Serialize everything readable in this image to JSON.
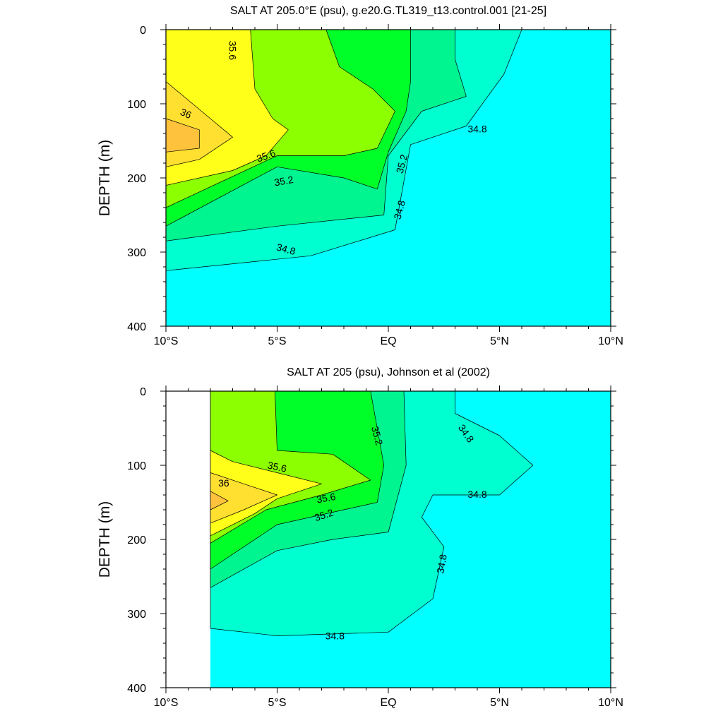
{
  "chart_data": [
    {
      "type": "contour",
      "title": "SALT AT 205.0°E (psu), g.e20.G.TL319_t13.control.001 [21-25]",
      "ylabel": "DEPTH (m)",
      "xlim": [
        -10,
        10
      ],
      "ylim": [
        400,
        0
      ],
      "x_ticks": [
        {
          "value": -10,
          "label": "10°S"
        },
        {
          "value": -5,
          "label": "5°S"
        },
        {
          "value": 0,
          "label": "EQ"
        },
        {
          "value": 5,
          "label": "5°N"
        },
        {
          "value": 10,
          "label": "10°N"
        }
      ],
      "y_ticks": [
        {
          "value": 0,
          "label": "0"
        },
        {
          "value": 100,
          "label": "100"
        },
        {
          "value": 200,
          "label": "200"
        },
        {
          "value": 300,
          "label": "300"
        },
        {
          "value": 400,
          "label": "400"
        }
      ],
      "data_x_range": [
        -10,
        10
      ],
      "levels": [
        {
          "value": 34.6,
          "color": "#00ffff"
        },
        {
          "value": 34.8,
          "color": "#00ffd0"
        },
        {
          "value": 35.0,
          "color": "#00f490"
        },
        {
          "value": 35.2,
          "color": "#00ff28"
        },
        {
          "value": 35.4,
          "color": "#8cff00"
        },
        {
          "value": 35.6,
          "color": "#ffff1a"
        },
        {
          "value": 35.8,
          "color": "#ffe030"
        },
        {
          "value": 36.0,
          "color": "#ffc23c"
        }
      ],
      "regions": [
        {
          "level": 34.8,
          "points": [
            [
              -10,
              0
            ],
            [
              6,
              0
            ],
            [
              5.2,
              60
            ],
            [
              3.5,
              130
            ],
            [
              1.0,
              155
            ],
            [
              0.3,
              270
            ],
            [
              -3.5,
              305
            ],
            [
              -10,
              325
            ]
          ]
        },
        {
          "level": 35.0,
          "points": [
            [
              -10,
              0
            ],
            [
              3,
              0
            ],
            [
              3,
              40
            ],
            [
              3.5,
              90
            ],
            [
              1.5,
              110
            ],
            [
              0,
              170
            ],
            [
              -0.2,
              250
            ],
            [
              -5,
              265
            ],
            [
              -10,
              285
            ]
          ]
        },
        {
          "level": 35.2,
          "points": [
            [
              -10,
              0
            ],
            [
              1,
              0
            ],
            [
              1,
              70
            ],
            [
              0.8,
              110
            ],
            [
              0,
              165
            ],
            [
              -0.5,
              215
            ],
            [
              -2,
              200
            ],
            [
              -5,
              185
            ],
            [
              -10,
              265
            ]
          ]
        },
        {
          "level": 35.4,
          "points": [
            [
              -10,
              0
            ],
            [
              -2.8,
              0
            ],
            [
              -2.2,
              50
            ],
            [
              -0.7,
              80
            ],
            [
              0.3,
              110
            ],
            [
              -0.5,
              160
            ],
            [
              -2,
              170
            ],
            [
              -5,
              170
            ],
            [
              -10,
              240
            ]
          ]
        },
        {
          "level": 35.6,
          "points": [
            [
              -10,
              0
            ],
            [
              -6.2,
              0
            ],
            [
              -6,
              80
            ],
            [
              -5.2,
              120
            ],
            [
              -4.5,
              135
            ],
            [
              -5.5,
              170
            ],
            [
              -7,
              190
            ],
            [
              -10,
              210
            ]
          ]
        },
        {
          "level": 35.8,
          "points": [
            [
              -10,
              70
            ],
            [
              -8,
              120
            ],
            [
              -7,
              145
            ],
            [
              -8.5,
              175
            ],
            [
              -10,
              185
            ]
          ]
        },
        {
          "level": 36.0,
          "points": [
            [
              -10,
              120
            ],
            [
              -8.5,
              135
            ],
            [
              -8.5,
              160
            ],
            [
              -10,
              165
            ]
          ]
        }
      ],
      "contour_labels": [
        {
          "text": "35.6",
          "x": -7.0,
          "y": 28,
          "angle": 90
        },
        {
          "text": "36",
          "x": -9.1,
          "y": 113,
          "angle": 25
        },
        {
          "text": "35.6",
          "x": -5.5,
          "y": 170,
          "angle": -20
        },
        {
          "text": "35.2",
          "x": -4.7,
          "y": 204,
          "angle": -10
        },
        {
          "text": "35.2",
          "x": 0.6,
          "y": 181,
          "angle": -75
        },
        {
          "text": "34.8",
          "x": 4.0,
          "y": 134,
          "angle": 0
        },
        {
          "text": "34.8",
          "x": 0.5,
          "y": 243,
          "angle": -75
        },
        {
          "text": "34.8",
          "x": -4.6,
          "y": 296,
          "angle": 15
        }
      ]
    },
    {
      "type": "contour",
      "title": "SALT AT 205 (psu), Johnson et al (2002)",
      "ylabel": "DEPTH (m)",
      "xlim": [
        -10,
        10
      ],
      "ylim": [
        400,
        0
      ],
      "x_ticks": [
        {
          "value": -10,
          "label": "10°S"
        },
        {
          "value": -5,
          "label": "5°S"
        },
        {
          "value": 0,
          "label": "EQ"
        },
        {
          "value": 5,
          "label": "5°N"
        },
        {
          "value": 10,
          "label": "10°N"
        }
      ],
      "y_ticks": [
        {
          "value": 0,
          "label": "0"
        },
        {
          "value": 100,
          "label": "100"
        },
        {
          "value": 200,
          "label": "200"
        },
        {
          "value": 300,
          "label": "300"
        },
        {
          "value": 400,
          "label": "400"
        }
      ],
      "data_x_range": [
        -8,
        10
      ],
      "levels": [
        {
          "value": 34.6,
          "color": "#00ffff"
        },
        {
          "value": 34.8,
          "color": "#00ffd0"
        },
        {
          "value": 35.0,
          "color": "#00f490"
        },
        {
          "value": 35.2,
          "color": "#00ff28"
        },
        {
          "value": 35.4,
          "color": "#8cff00"
        },
        {
          "value": 35.6,
          "color": "#ffff1a"
        },
        {
          "value": 35.8,
          "color": "#ffe030"
        },
        {
          "value": 36.0,
          "color": "#ffc23c"
        }
      ],
      "regions": [
        {
          "level": 34.8,
          "points": [
            [
              -8,
              0
            ],
            [
              3,
              0
            ],
            [
              3,
              30
            ],
            [
              5,
              60
            ],
            [
              6.5,
              100
            ],
            [
              5,
              140
            ],
            [
              2,
              140
            ],
            [
              1.5,
              170
            ],
            [
              2.5,
              210
            ],
            [
              2,
              280
            ],
            [
              0,
              325
            ],
            [
              -5,
              330
            ],
            [
              -8,
              320
            ]
          ]
        },
        {
          "level": 35.0,
          "points": [
            [
              -8,
              0
            ],
            [
              0.7,
              0
            ],
            [
              0.8,
              100
            ],
            [
              0,
              190
            ],
            [
              -2.5,
              200
            ],
            [
              -5,
              215
            ],
            [
              -8,
              265
            ]
          ]
        },
        {
          "level": 35.2,
          "points": [
            [
              -8,
              0
            ],
            [
              -0.8,
              0
            ],
            [
              -0.5,
              50
            ],
            [
              -0.2,
              100
            ],
            [
              -0.5,
              150
            ],
            [
              -2,
              160
            ],
            [
              -5,
              180
            ],
            [
              -8,
              240
            ]
          ]
        },
        {
          "level": 35.4,
          "points": [
            [
              -8,
              0
            ],
            [
              -5.1,
              0
            ],
            [
              -5,
              80
            ],
            [
              -2.5,
              85
            ],
            [
              -0.8,
              120
            ],
            [
              -3,
              140
            ],
            [
              -5.5,
              160
            ],
            [
              -8,
              205
            ]
          ]
        },
        {
          "level": 35.6,
          "points": [
            [
              -8,
              80
            ],
            [
              -7,
              95
            ],
            [
              -5,
              110
            ],
            [
              -3,
              125
            ],
            [
              -5,
              145
            ],
            [
              -6,
              165
            ],
            [
              -8,
              195
            ]
          ]
        },
        {
          "level": 35.8,
          "points": [
            [
              -8,
              110
            ],
            [
              -6.5,
              125
            ],
            [
              -5,
              140
            ],
            [
              -6.5,
              160
            ],
            [
              -8,
              178
            ]
          ]
        },
        {
          "level": 36.0,
          "points": [
            [
              -8,
              135
            ],
            [
              -7.2,
              148
            ],
            [
              -8,
              160
            ]
          ]
        }
      ],
      "contour_labels": [
        {
          "text": "35.2",
          "x": -0.5,
          "y": 60,
          "angle": 75
        },
        {
          "text": "34.8",
          "x": 3.5,
          "y": 57,
          "angle": 55
        },
        {
          "text": "35.6",
          "x": -5.0,
          "y": 102,
          "angle": 12
        },
        {
          "text": "36",
          "x": -7.4,
          "y": 124,
          "angle": 0
        },
        {
          "text": "35.6",
          "x": -2.8,
          "y": 144,
          "angle": -10
        },
        {
          "text": "35.2",
          "x": -2.9,
          "y": 167,
          "angle": -18
        },
        {
          "text": "34.8",
          "x": 4.0,
          "y": 139,
          "angle": 0
        },
        {
          "text": "34.8",
          "x": 2.4,
          "y": 233,
          "angle": -80
        },
        {
          "text": "34.8",
          "x": -2.4,
          "y": 330,
          "angle": 0
        }
      ]
    }
  ]
}
